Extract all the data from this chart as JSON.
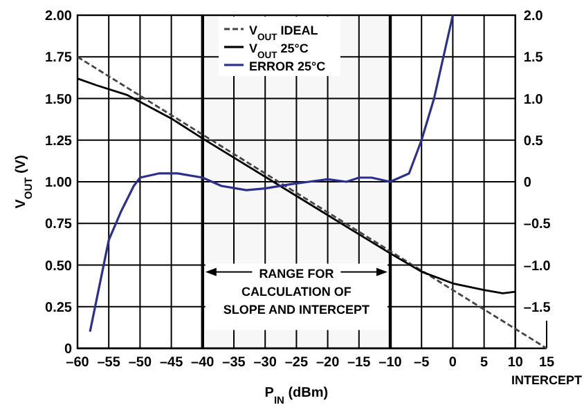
{
  "chart_data": {
    "type": "line",
    "xlabel": "P$_{IN}$ (dBm)",
    "ylabel": "V$_{OUT}$ (V)",
    "xlim": [
      -60,
      15
    ],
    "xticks": [
      {
        "value": -60,
        "label": "–60"
      },
      {
        "value": -55,
        "label": "–55"
      },
      {
        "value": -50,
        "label": "–50"
      },
      {
        "value": -45,
        "label": "–45"
      },
      {
        "value": -40,
        "label": "–40"
      },
      {
        "value": -35,
        "label": "–35"
      },
      {
        "value": -30,
        "label": "–30"
      },
      {
        "value": -25,
        "label": "–25"
      },
      {
        "value": -20,
        "label": "–20"
      },
      {
        "value": -15,
        "label": "–15"
      },
      {
        "value": -10,
        "label": "–10"
      },
      {
        "value": -5,
        "label": "–5"
      },
      0,
      5,
      10,
      15
    ],
    "ylim": [
      0,
      2
    ],
    "yticks": [
      0,
      {
        "value": 0.25,
        "label": "0.25"
      },
      {
        "value": 0.5,
        "label": "0.50"
      },
      {
        "value": 0.75,
        "label": "0.75"
      },
      {
        "value": 1,
        "label": "1.00"
      },
      {
        "value": 1.25,
        "label": "1.25"
      },
      {
        "value": 1.5,
        "label": "1.50"
      },
      {
        "value": 1.75,
        "label": "1.75"
      },
      {
        "value": 2,
        "label": "2.00"
      }
    ],
    "y2lim": [
      -2,
      2
    ],
    "y2ticks": [
      {
        "value": -1.5,
        "label": "–1.5"
      },
      {
        "value": -1,
        "label": "–1.0"
      },
      {
        "value": -0.5,
        "label": "–0.5"
      },
      0,
      {
        "value": 0.5,
        "label": "0.5"
      },
      {
        "value": 1,
        "label": "1.0"
      },
      {
        "value": 1.5,
        "label": "1.5"
      },
      {
        "value": 2,
        "label": "2.0"
      }
    ],
    "grid": true,
    "legend": "top",
    "series": [
      {
        "name": "V$_{OUT}$ IDEAL",
        "color": "#444444",
        "line_style": "dashed",
        "x": [
          -60,
          15
        ],
        "values": [
          1.75,
          0
        ]
      },
      {
        "name": "V$_{OUT}$ 25°C",
        "color": "#000000",
        "line_style": "solid",
        "x": [
          -60,
          -57,
          -52,
          -45,
          -40,
          -30,
          -20,
          -10,
          -5,
          0,
          5,
          8,
          10
        ],
        "values": [
          1.62,
          1.58,
          1.52,
          1.38,
          1.26,
          1.03,
          0.8,
          0.57,
          0.46,
          0.39,
          0.35,
          0.33,
          0.34
        ]
      },
      {
        "name": "ERROR 25°C",
        "color": "#2b2f8f",
        "line_style": "solid",
        "axis": "y2",
        "x": [
          -58,
          -55,
          -53,
          -51,
          -50,
          -47,
          -44,
          -40,
          -37,
          -33,
          -30,
          -26,
          -23,
          -20,
          -17,
          -15,
          -13,
          -10,
          -7,
          -5,
          -3,
          -1.5,
          0
        ],
        "values": [
          -1.8,
          -0.7,
          -0.35,
          -0.05,
          0.05,
          0.1,
          0.1,
          0.05,
          -0.05,
          -0.1,
          -0.08,
          -0.03,
          0,
          0.03,
          0,
          0.05,
          0.05,
          0,
          0.1,
          0.5,
          1,
          1.5,
          2
        ]
      }
    ],
    "bands": [
      {
        "axis": "x",
        "from": -40,
        "to": -10,
        "label": "RANGE FOR CALCULATION OF SLOPE AND INTERCEPT",
        "color": "#000000"
      }
    ],
    "annotations": [
      {
        "text": "INTERCEPT",
        "x": 15,
        "y": 0
      }
    ]
  }
}
